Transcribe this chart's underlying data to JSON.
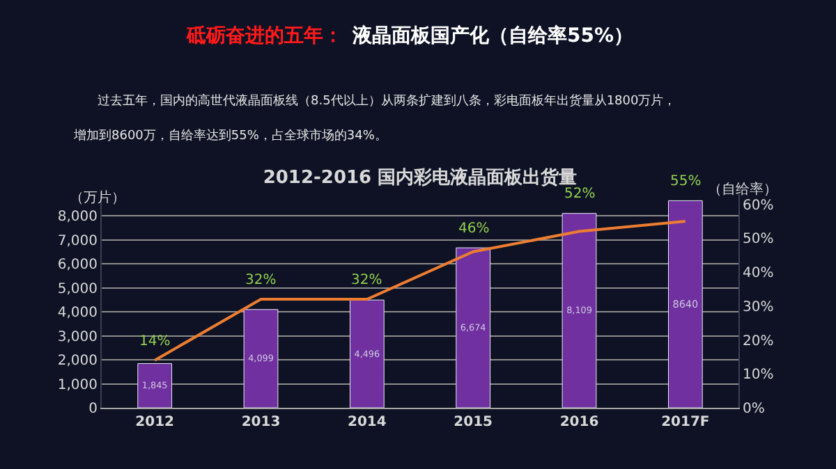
{
  "chart_data": {
    "type": "bar",
    "title": "2012-2016 国内彩电液晶面板出货量",
    "annotations": [
      "砥砺奋进的五年：",
      "液晶面板国产化（自给率55%）",
      "过去五年，国内的高世代液晶面板线（8.5代以上）从两条扩建到八条，彩电面板年出货量从1800万片，",
      "增加到8600万，自给率达到55%，占全球市场的34%。"
    ],
    "ylabel": "（万片）",
    "y2label": "（自给率）",
    "categories": [
      "2012",
      "2013",
      "2014",
      "2015",
      "2016",
      "2017F"
    ],
    "series": [
      {
        "color": "#7030a0",
        "values": [
          1845,
          4099,
          4496,
          6674,
          8109,
          8640
        ],
        "value_labels": [
          "1,845",
          "4,099",
          "4,496",
          "6,674",
          "8,109",
          "8640"
        ]
      },
      {
        "type": "line",
        "axis": "y2",
        "color": "#ed7d31",
        "values": [
          14,
          32,
          32,
          46,
          52,
          55
        ],
        "value_labels": [
          "14%",
          "32%",
          "32%",
          "46%",
          "52%",
          "55%"
        ],
        "marker": "none"
      }
    ],
    "ylim": [
      0,
      9000
    ],
    "yticks": [
      0,
      {
        "value": 1000,
        "label": "1,000"
      },
      {
        "value": 2000,
        "label": "2,000"
      },
      {
        "value": 3000,
        "label": "3,000"
      },
      {
        "value": 4000,
        "label": "4,000"
      },
      {
        "value": 5000,
        "label": "5,000"
      },
      {
        "value": 6000,
        "label": "6,000"
      },
      {
        "value": 7000,
        "label": "7,000"
      },
      {
        "value": 8000,
        "label": "8,000"
      }
    ],
    "y2lim": [
      0,
      63.6
    ],
    "y2ticks": [
      {
        "value": 0,
        "label": "0%"
      },
      {
        "value": 10,
        "label": "10%"
      },
      {
        "value": 20,
        "label": "20%"
      },
      {
        "value": 30,
        "label": "30%"
      },
      {
        "value": 40,
        "label": "40%"
      },
      {
        "value": 50,
        "label": "50%"
      },
      {
        "value": 60,
        "label": "60%"
      }
    ],
    "grid": "y"
  }
}
